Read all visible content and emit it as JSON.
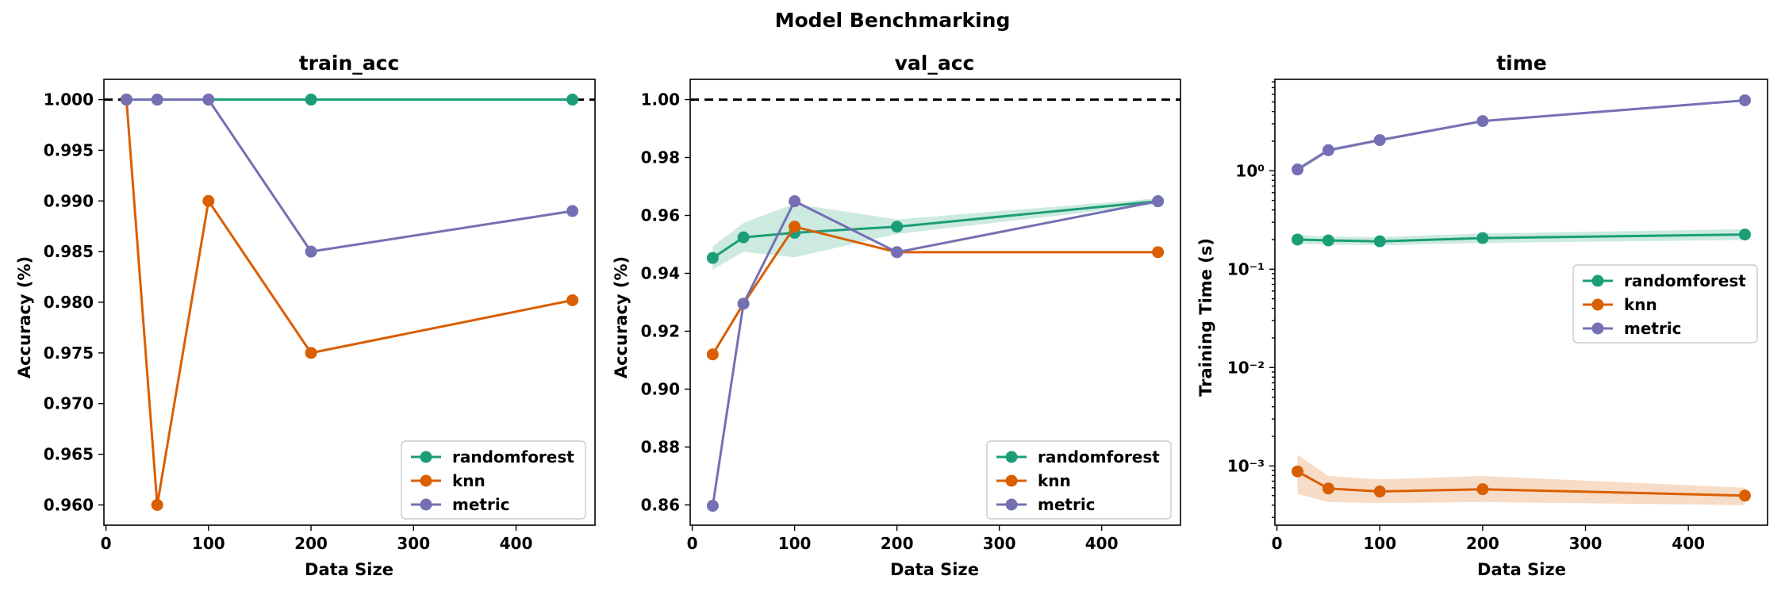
{
  "figure_title": "Model Benchmarking",
  "colors": {
    "randomforest": "#1b9e77",
    "knn": "#d95f02",
    "metric": "#7570b3"
  },
  "chart_data": [
    {
      "id": "train",
      "type": "line",
      "title": "train_acc",
      "xlabel": "Data Size",
      "ylabel": "Accuracy (%)",
      "xlim": [
        -2,
        477
      ],
      "ylim": [
        0.958,
        1.002
      ],
      "xticks": [
        0,
        100,
        200,
        300,
        400
      ],
      "yscale": "linear",
      "yticks": [
        0.96,
        0.965,
        0.97,
        0.975,
        0.98,
        0.985,
        0.99,
        0.995,
        1.0
      ],
      "ytick_labels": [
        "0.960",
        "0.965",
        "0.970",
        "0.975",
        "0.980",
        "0.985",
        "0.990",
        "0.995",
        "1.000"
      ],
      "reference_line": 1.0,
      "legend": "lower-right",
      "x": [
        20,
        50,
        100,
        200,
        455
      ],
      "series": [
        {
          "name": "randomforest",
          "values": [
            1.0,
            1.0,
            1.0,
            1.0,
            1.0
          ]
        },
        {
          "name": "knn",
          "values": [
            1.0,
            0.96,
            0.99,
            0.975,
            0.9802
          ]
        },
        {
          "name": "metric",
          "values": [
            1.0,
            1.0,
            1.0,
            0.985,
            0.989
          ]
        }
      ]
    },
    {
      "id": "val",
      "type": "line",
      "title": "val_acc",
      "xlabel": "Data Size",
      "ylabel": "Accuracy (%)",
      "xlim": [
        -2,
        477
      ],
      "ylim": [
        0.853,
        1.007
      ],
      "xticks": [
        0,
        100,
        200,
        300,
        400
      ],
      "yscale": "linear",
      "yticks": [
        0.86,
        0.88,
        0.9,
        0.92,
        0.94,
        0.96,
        0.98,
        1.0
      ],
      "ytick_labels": [
        "0.86",
        "0.88",
        "0.90",
        "0.92",
        "0.94",
        "0.96",
        "0.98",
        "1.00"
      ],
      "reference_line": 1.0,
      "legend": "lower-right",
      "x": [
        20,
        50,
        100,
        200,
        455
      ],
      "series": [
        {
          "name": "randomforest",
          "values": [
            0.9453,
            0.9524,
            0.954,
            0.9561,
            0.9649
          ],
          "lower": [
            0.9413,
            0.9474,
            0.9455,
            0.9536,
            0.9639
          ],
          "upper": [
            0.9493,
            0.9574,
            0.964,
            0.9586,
            0.9659
          ]
        },
        {
          "name": "knn",
          "values": [
            0.912,
            0.9295,
            0.9561,
            0.9473,
            0.9473
          ]
        },
        {
          "name": "metric",
          "values": [
            0.8597,
            0.9295,
            0.9649,
            0.9473,
            0.9649
          ]
        }
      ]
    },
    {
      "id": "time",
      "type": "line",
      "title": "time",
      "xlabel": "Data Size",
      "ylabel": "Training Time (s)",
      "xlim": [
        -2,
        477
      ],
      "ylim": [
        0.00025,
        8.5
      ],
      "xticks": [
        0,
        100,
        200,
        300,
        400
      ],
      "yscale": "log",
      "yticks": [
        0.001,
        0.01,
        0.1,
        1
      ],
      "ytick_labels": [
        "10⁻³",
        "10⁻²",
        "10⁻¹",
        "10⁰"
      ],
      "legend": "center-right",
      "x": [
        20,
        50,
        100,
        200,
        455
      ],
      "series": [
        {
          "name": "randomforest",
          "values": [
            0.2,
            0.196,
            0.192,
            0.207,
            0.225
          ],
          "lower": [
            0.18,
            0.178,
            0.175,
            0.185,
            0.198
          ],
          "upper": [
            0.222,
            0.215,
            0.212,
            0.23,
            0.255
          ]
        },
        {
          "name": "knn",
          "values": [
            0.00088,
            0.00059,
            0.00055,
            0.00058,
            0.0005
          ],
          "lower": [
            0.00052,
            0.00043,
            0.00042,
            0.00043,
            0.0004
          ],
          "upper": [
            0.0013,
            0.00079,
            0.00073,
            0.00079,
            0.0006
          ]
        },
        {
          "name": "metric",
          "values": [
            1.03,
            1.62,
            2.05,
            3.2,
            5.2
          ],
          "lower": [
            0.97,
            1.54,
            1.98,
            3.1,
            5.1
          ],
          "upper": [
            1.09,
            1.7,
            2.12,
            3.3,
            5.3
          ]
        }
      ]
    }
  ]
}
